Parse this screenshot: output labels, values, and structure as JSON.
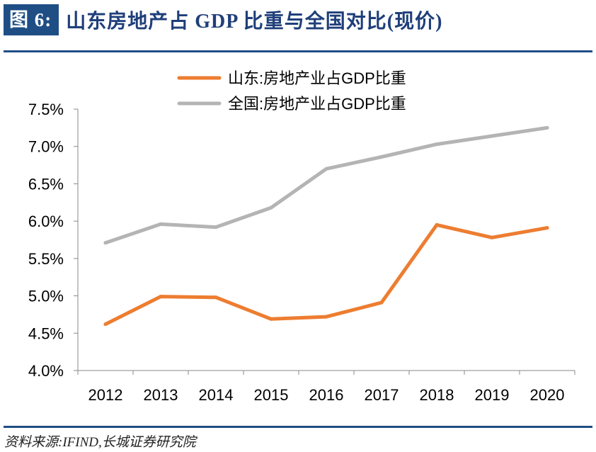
{
  "header": {
    "figure_label": "图 6:",
    "title": "山东房地产占 GDP 比重与全国对比(现价)"
  },
  "source": "资料来源:IFIND,长城证券研究院",
  "chart_data": {
    "type": "line",
    "x": [
      "2012",
      "2013",
      "2014",
      "2015",
      "2016",
      "2017",
      "2018",
      "2019",
      "2020"
    ],
    "series": [
      {
        "name": "山东:房地产业占GDP比重",
        "color": "#ed7d31",
        "values": [
          4.62,
          4.99,
          4.98,
          4.69,
          4.72,
          4.91,
          5.95,
          5.78,
          5.91
        ]
      },
      {
        "name": "全国:房地产业占GDP比重",
        "color": "#b4b4b4",
        "values": [
          5.71,
          5.96,
          5.92,
          6.18,
          6.7,
          6.86,
          7.03,
          7.14,
          7.25
        ]
      }
    ],
    "ylim": [
      4.0,
      7.5
    ],
    "yticks": [
      4.0,
      4.5,
      5.0,
      5.5,
      6.0,
      6.5,
      7.0,
      7.5
    ],
    "ytick_labels": [
      "4.0%",
      "4.5%",
      "5.0%",
      "5.5%",
      "6.0%",
      "6.5%",
      "7.0%",
      "7.5%"
    ],
    "grid": false,
    "legend_position": "top-center"
  }
}
